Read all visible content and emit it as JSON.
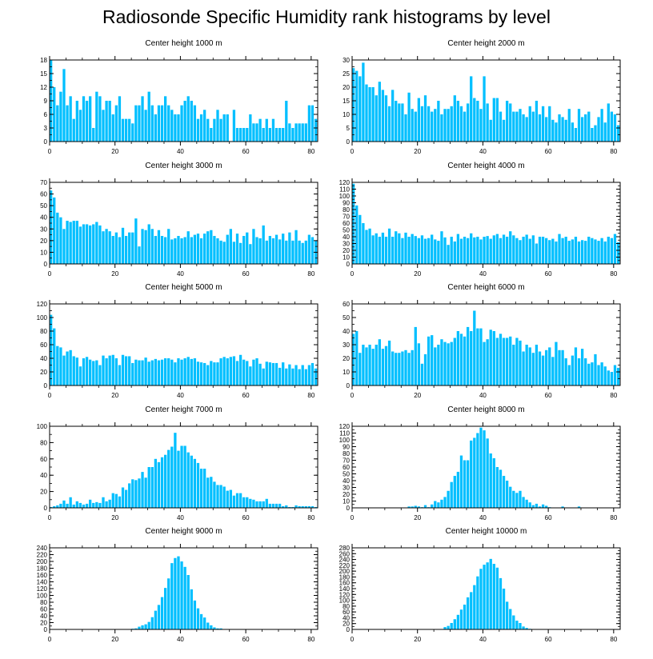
{
  "title": "Radiosonde Specific Humidity rank histograms by level",
  "bar_color": "#00bfff",
  "chart_data": [
    {
      "type": "bar",
      "title": "Center height 1000 m",
      "xlim": [
        0,
        82
      ],
      "ylim": [
        0,
        18
      ],
      "xticks": [
        0,
        20,
        40,
        60,
        80
      ],
      "yticks": [
        0,
        3,
        6,
        9,
        12,
        15,
        18
      ],
      "values": [
        18,
        12,
        8,
        11,
        16,
        8,
        10,
        5,
        9,
        7,
        10,
        9,
        10,
        3,
        11,
        10,
        7,
        9,
        9,
        6,
        8,
        10,
        5,
        5,
        5,
        4,
        8,
        8,
        10,
        7,
        11,
        8,
        6,
        8,
        8,
        10,
        8,
        7,
        6,
        6,
        8,
        9,
        10,
        9,
        8,
        5,
        6,
        7,
        5,
        3,
        5,
        7,
        5,
        6,
        6,
        0,
        7,
        3,
        3,
        3,
        3,
        6,
        4,
        4,
        5,
        3,
        5,
        3,
        5,
        3,
        3,
        3,
        9,
        4,
        3,
        4,
        4,
        4,
        4,
        8,
        8,
        5
      ]
    },
    {
      "type": "bar",
      "title": "Center height 2000 m",
      "xlim": [
        0,
        82
      ],
      "ylim": [
        0,
        30
      ],
      "xticks": [
        0,
        20,
        40,
        60,
        80
      ],
      "yticks": [
        0,
        5,
        10,
        15,
        20,
        25,
        30
      ],
      "values": [
        27,
        26,
        24,
        29,
        21,
        20,
        20,
        17,
        22,
        19,
        17,
        13,
        19,
        15,
        14,
        14,
        10,
        18,
        12,
        11,
        16,
        13,
        17,
        13,
        11,
        12,
        15,
        10,
        12,
        12,
        13,
        17,
        15,
        13,
        11,
        14,
        24,
        16,
        15,
        12,
        24,
        14,
        8,
        16,
        16,
        11,
        8,
        15,
        14,
        11,
        11,
        12,
        10,
        9,
        13,
        11,
        15,
        10,
        13,
        9,
        13,
        8,
        7,
        10,
        9,
        8,
        12,
        7,
        5,
        12,
        9,
        10,
        11,
        5,
        6,
        9,
        12,
        7,
        14,
        11,
        10,
        6
      ]
    },
    {
      "type": "bar",
      "title": "Center height 3000 m",
      "xlim": [
        0,
        82
      ],
      "ylim": [
        0,
        70
      ],
      "xticks": [
        0,
        20,
        40,
        60,
        80
      ],
      "yticks": [
        0,
        10,
        20,
        30,
        40,
        50,
        60,
        70
      ],
      "values": [
        63,
        57,
        44,
        40,
        30,
        37,
        36,
        37,
        37,
        32,
        34,
        34,
        33,
        34,
        36,
        33,
        28,
        30,
        28,
        24,
        27,
        23,
        31,
        24,
        27,
        27,
        39,
        15,
        30,
        29,
        34,
        30,
        24,
        29,
        24,
        23,
        30,
        21,
        22,
        24,
        22,
        23,
        28,
        23,
        25,
        26,
        22,
        26,
        28,
        29,
        24,
        22,
        20,
        19,
        25,
        30,
        19,
        26,
        18,
        24,
        27,
        17,
        30,
        23,
        22,
        33,
        20,
        24,
        22,
        25,
        21,
        26,
        20,
        27,
        20,
        29,
        20,
        18,
        20,
        25,
        23,
        20
      ]
    },
    {
      "type": "bar",
      "title": "Center height 4000 m",
      "xlim": [
        0,
        82
      ],
      "ylim": [
        0,
        120
      ],
      "xticks": [
        0,
        20,
        40,
        60,
        80
      ],
      "yticks": [
        0,
        10,
        20,
        30,
        40,
        50,
        60,
        70,
        80,
        90,
        100,
        110,
        120
      ],
      "values": [
        118,
        86,
        72,
        60,
        50,
        52,
        42,
        45,
        40,
        46,
        40,
        52,
        40,
        48,
        45,
        38,
        46,
        40,
        44,
        41,
        38,
        42,
        37,
        38,
        43,
        36,
        34,
        48,
        39,
        28,
        40,
        33,
        44,
        37,
        40,
        38,
        45,
        39,
        40,
        36,
        40,
        41,
        37,
        42,
        44,
        38,
        43,
        40,
        48,
        42,
        38,
        35,
        40,
        43,
        37,
        42,
        30,
        40,
        40,
        38,
        35,
        37,
        33,
        44,
        38,
        40,
        34,
        36,
        40,
        33,
        35,
        34,
        40,
        38,
        36,
        34,
        38,
        33,
        40,
        38,
        44,
        32
      ]
    },
    {
      "type": "bar",
      "title": "Center height 5000 m",
      "xlim": [
        0,
        82
      ],
      "ylim": [
        0,
        120
      ],
      "xticks": [
        0,
        20,
        40,
        60,
        80
      ],
      "yticks": [
        0,
        20,
        40,
        60,
        80,
        100,
        120
      ],
      "values": [
        104,
        84,
        58,
        56,
        44,
        50,
        52,
        43,
        41,
        28,
        40,
        42,
        38,
        36,
        37,
        30,
        44,
        40,
        44,
        45,
        40,
        30,
        45,
        43,
        43,
        33,
        38,
        37,
        37,
        41,
        35,
        37,
        39,
        37,
        38,
        40,
        40,
        38,
        34,
        40,
        38,
        40,
        42,
        39,
        40,
        35,
        34,
        33,
        30,
        36,
        34,
        34,
        40,
        42,
        40,
        42,
        43,
        36,
        45,
        38,
        36,
        28,
        38,
        40,
        32,
        25,
        35,
        34,
        33,
        33,
        26,
        34,
        25,
        31,
        25,
        30,
        24,
        30,
        24,
        30,
        33,
        25
      ]
    },
    {
      "type": "bar",
      "title": "Center height 6000 m",
      "xlim": [
        0,
        82
      ],
      "ylim": [
        0,
        60
      ],
      "xticks": [
        0,
        20,
        40,
        60,
        80
      ],
      "yticks": [
        0,
        10,
        20,
        30,
        40,
        50,
        60
      ],
      "values": [
        38,
        40,
        24,
        30,
        28,
        30,
        27,
        30,
        34,
        27,
        29,
        33,
        25,
        24,
        24,
        25,
        26,
        24,
        26,
        43,
        31,
        16,
        23,
        36,
        37,
        28,
        30,
        34,
        32,
        31,
        32,
        35,
        40,
        38,
        36,
        43,
        40,
        55,
        42,
        42,
        32,
        34,
        41,
        40,
        35,
        38,
        35,
        35,
        36,
        30,
        35,
        33,
        25,
        30,
        28,
        24,
        30,
        25,
        22,
        26,
        28,
        21,
        32,
        26,
        26,
        20,
        15,
        22,
        28,
        20,
        27,
        20,
        16,
        17,
        23,
        15,
        17,
        14,
        11,
        10,
        15,
        13
      ]
    },
    {
      "type": "bar",
      "title": "Center height 7000 m",
      "xlim": [
        0,
        82
      ],
      "ylim": [
        0,
        100
      ],
      "xticks": [
        0,
        20,
        40,
        60,
        80
      ],
      "yticks": [
        0,
        20,
        40,
        60,
        80,
        100
      ],
      "values": [
        1,
        2,
        3,
        5,
        9,
        5,
        13,
        4,
        8,
        6,
        4,
        5,
        10,
        6,
        7,
        6,
        13,
        8,
        10,
        18,
        17,
        14,
        25,
        22,
        30,
        35,
        34,
        36,
        44,
        37,
        50,
        50,
        60,
        56,
        62,
        65,
        71,
        75,
        92,
        70,
        76,
        76,
        68,
        64,
        60,
        55,
        48,
        48,
        37,
        38,
        32,
        28,
        28,
        26,
        21,
        22,
        15,
        18,
        18,
        13,
        13,
        11,
        10,
        8,
        8,
        8,
        11,
        5,
        5,
        5,
        5,
        2,
        3,
        1,
        1,
        3,
        2,
        2,
        2,
        2,
        2,
        1
      ]
    },
    {
      "type": "bar",
      "title": "Center height 8000 m",
      "xlim": [
        0,
        82
      ],
      "ylim": [
        0,
        120
      ],
      "xticks": [
        0,
        20,
        40,
        60,
        80
      ],
      "yticks": [
        0,
        10,
        20,
        30,
        40,
        50,
        60,
        70,
        80,
        90,
        100,
        110,
        120
      ],
      "values": [
        0,
        0,
        0,
        0,
        0,
        0,
        0,
        0,
        0,
        0,
        0,
        0,
        0,
        0,
        0,
        0,
        0,
        2,
        2,
        3,
        2,
        1,
        4,
        1,
        5,
        10,
        8,
        12,
        16,
        25,
        38,
        47,
        53,
        77,
        70,
        70,
        99,
        103,
        110,
        118,
        114,
        102,
        80,
        73,
        60,
        56,
        47,
        40,
        31,
        25,
        22,
        25,
        16,
        12,
        8,
        4,
        6,
        2,
        5,
        3,
        1,
        0,
        0,
        0,
        2,
        0,
        0,
        0,
        0,
        2,
        0,
        0,
        0,
        0,
        0,
        0,
        0,
        0,
        0,
        0,
        0,
        0
      ]
    },
    {
      "type": "bar",
      "title": "Center height 9000 m",
      "xlim": [
        0,
        82
      ],
      "ylim": [
        0,
        240
      ],
      "xticks": [
        0,
        20,
        40,
        60,
        80
      ],
      "yticks": [
        0,
        20,
        40,
        60,
        80,
        100,
        120,
        140,
        160,
        180,
        200,
        220,
        240
      ],
      "values": [
        0,
        0,
        0,
        0,
        0,
        0,
        0,
        0,
        0,
        0,
        0,
        0,
        0,
        0,
        0,
        0,
        0,
        0,
        0,
        0,
        0,
        0,
        0,
        0,
        0,
        2,
        3,
        8,
        12,
        15,
        22,
        36,
        55,
        72,
        95,
        122,
        150,
        195,
        210,
        215,
        200,
        184,
        160,
        118,
        85,
        62,
        45,
        35,
        20,
        12,
        6,
        3,
        3,
        0,
        0,
        0,
        0,
        0,
        0,
        0,
        0,
        0,
        0,
        0,
        0,
        0,
        0,
        0,
        0,
        0,
        0,
        0,
        0,
        0,
        0,
        0,
        0,
        0,
        0,
        0,
        0,
        0
      ]
    },
    {
      "type": "bar",
      "title": "Center height 10000 m",
      "xlim": [
        0,
        82
      ],
      "ylim": [
        0,
        280
      ],
      "xticks": [
        0,
        20,
        40,
        60,
        80
      ],
      "yticks": [
        0,
        20,
        40,
        60,
        80,
        100,
        120,
        140,
        160,
        180,
        200,
        220,
        240,
        260,
        280
      ],
      "values": [
        0,
        0,
        0,
        0,
        0,
        0,
        0,
        0,
        0,
        0,
        0,
        0,
        0,
        0,
        0,
        0,
        0,
        0,
        0,
        0,
        0,
        0,
        0,
        0,
        0,
        0,
        0,
        0,
        8,
        12,
        22,
        35,
        50,
        68,
        85,
        110,
        128,
        152,
        182,
        208,
        222,
        230,
        242,
        225,
        212,
        176,
        140,
        95,
        70,
        48,
        30,
        22,
        10,
        5,
        2,
        0,
        0,
        0,
        0,
        0,
        0,
        0,
        0,
        0,
        0,
        0,
        0,
        0,
        0,
        0,
        0,
        0,
        0,
        0,
        0,
        0,
        0,
        0,
        0,
        0,
        0,
        0
      ]
    }
  ]
}
